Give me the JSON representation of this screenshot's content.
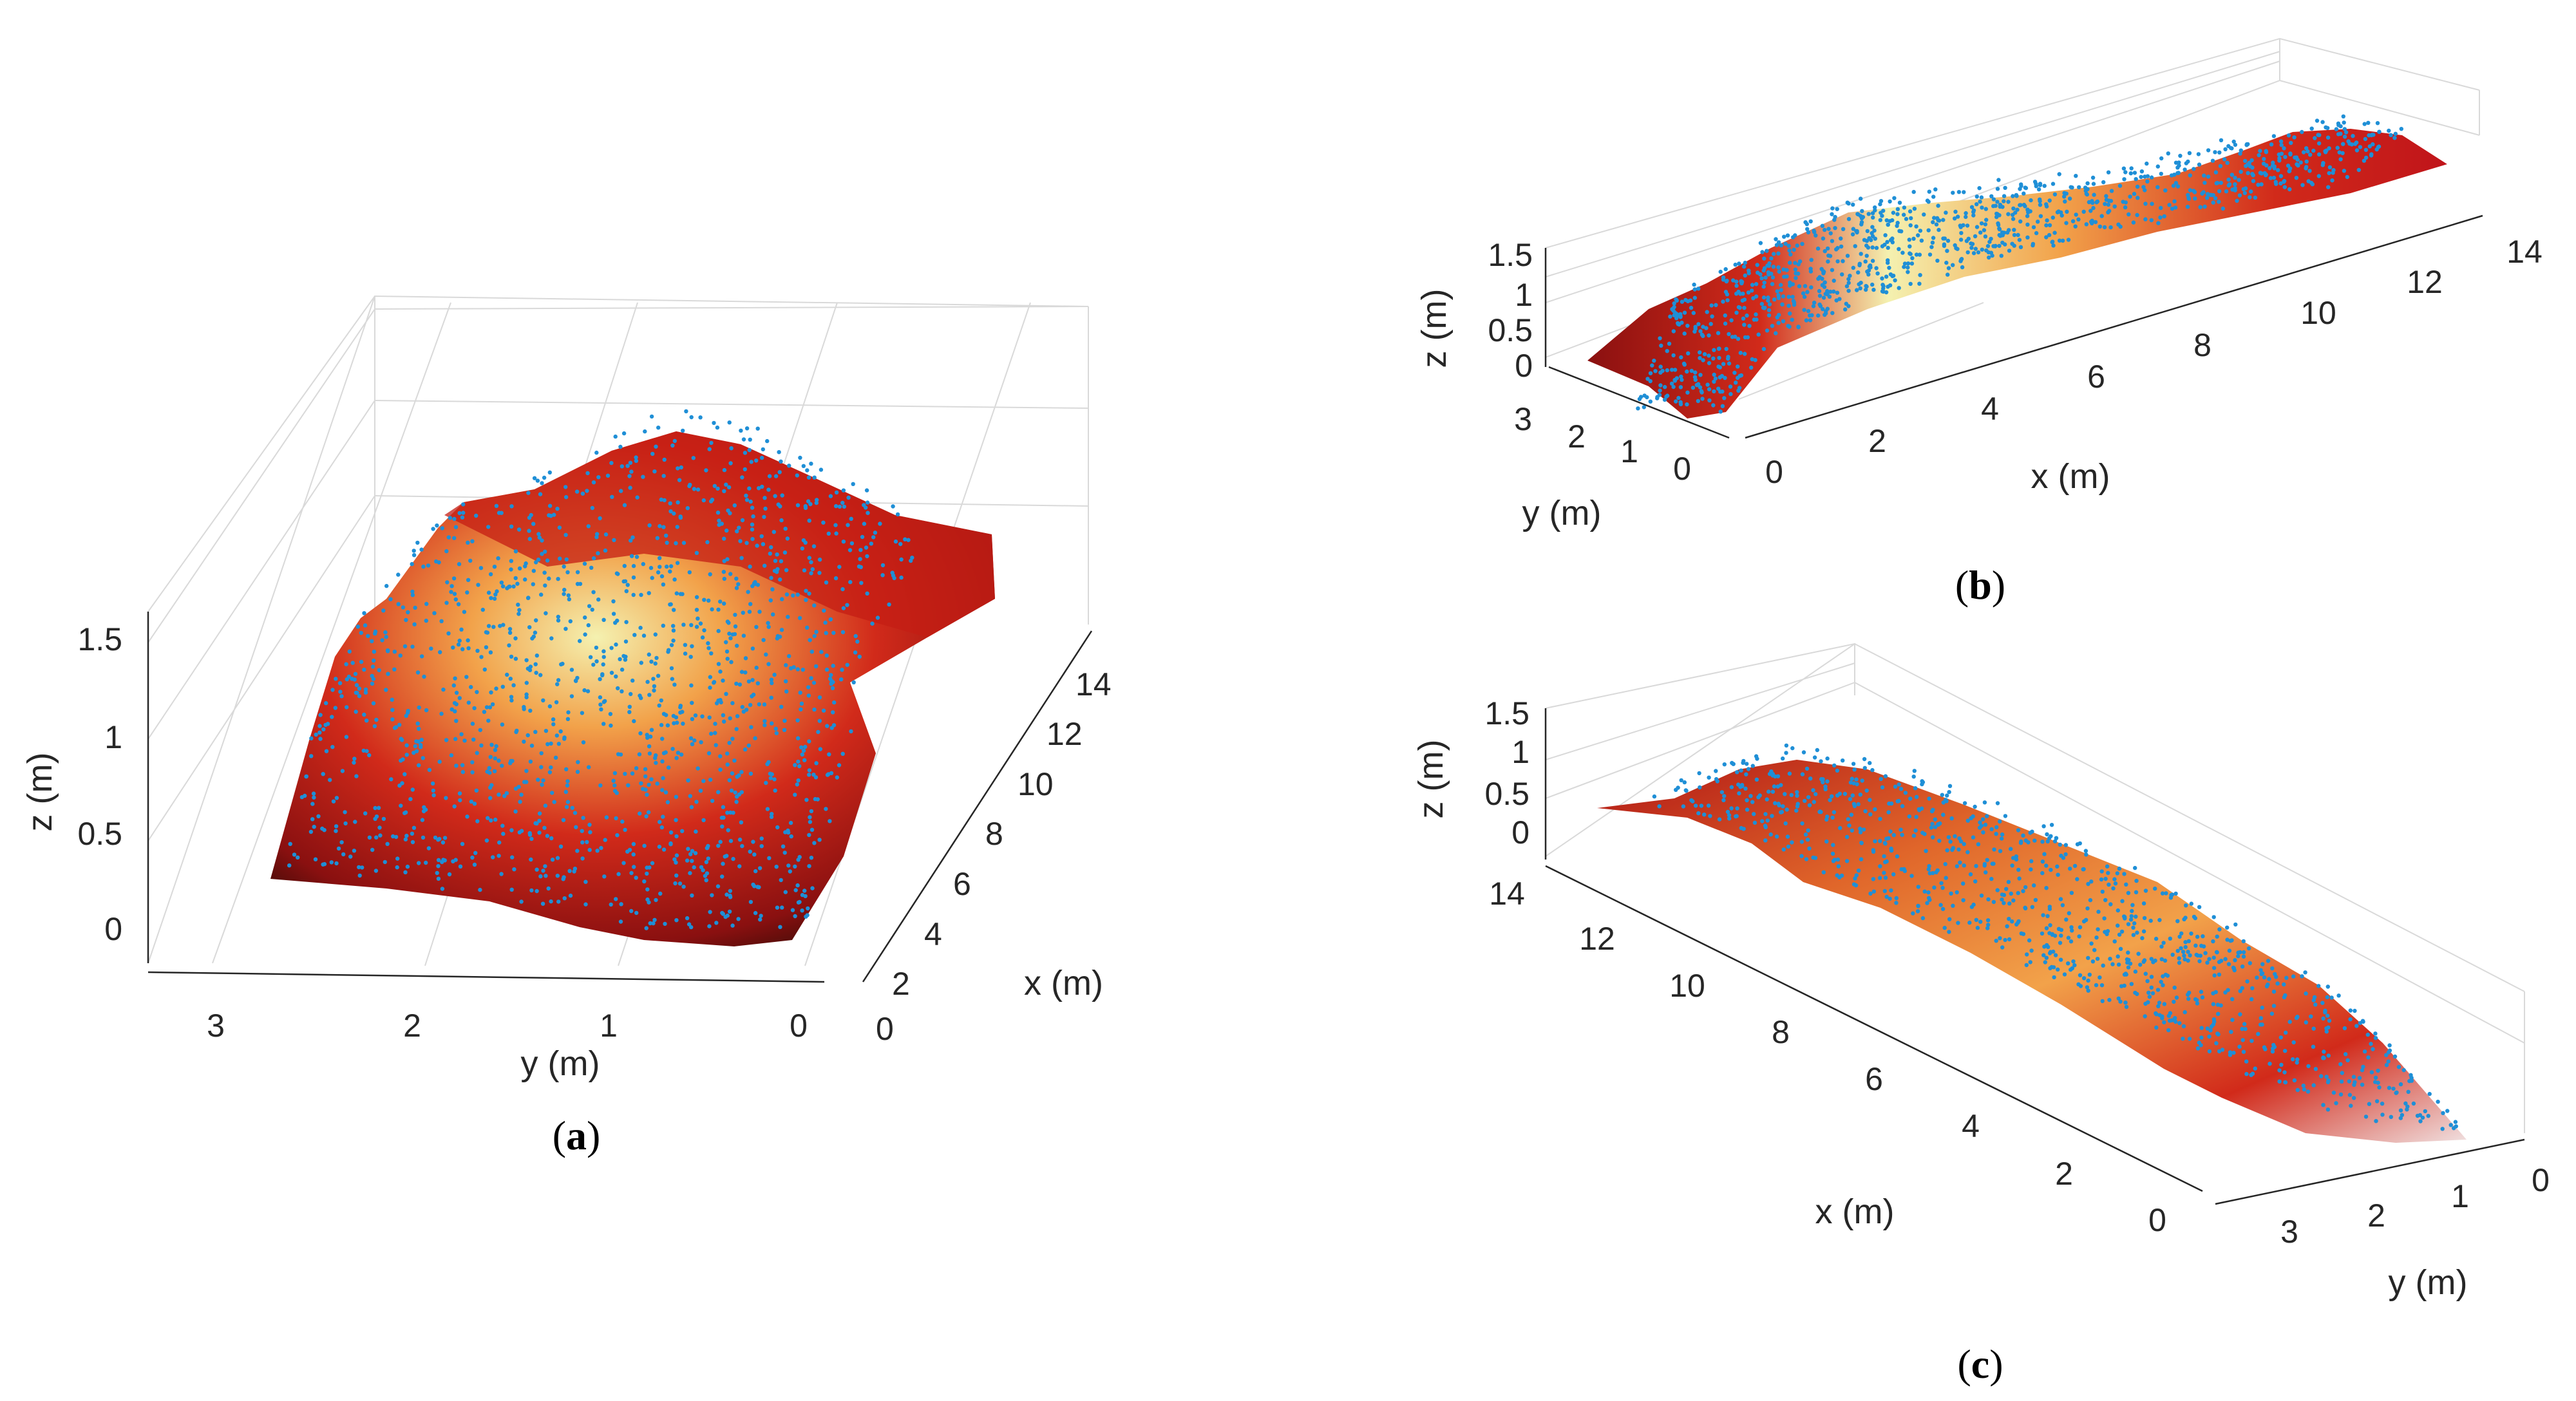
{
  "colors": {
    "points": "#1f8fd6",
    "surface_low": "#8a1010",
    "surface_mid": "#d12a1a",
    "surface_high": "#f2a24a",
    "surface_peak": "#f4f1b0",
    "surface_shadow": "#2a0a05",
    "grid": "#d9d9d9",
    "axis": "#262626"
  },
  "chart_data": [
    {
      "panel": "a",
      "caption_open": "(",
      "caption_letter": "a",
      "caption_close": ")",
      "type": "scatter",
      "description_kind": "3D surface with point cloud",
      "xlabel": "x (m)",
      "ylabel": "y (m)",
      "zlabel": "z (m)",
      "x_ticks": [
        "0",
        "2",
        "4",
        "6",
        "8",
        "10",
        "12",
        "14"
      ],
      "y_ticks": [
        "3",
        "2",
        "1",
        "0"
      ],
      "z_ticks": [
        "0",
        "0.5",
        "1",
        "1.5"
      ],
      "xlim": [
        0,
        14
      ],
      "ylim": [
        0,
        3.4
      ],
      "zlim": [
        0,
        1.7
      ]
    },
    {
      "panel": "b",
      "caption_open": "(",
      "caption_letter": "b",
      "caption_close": ")",
      "type": "scatter",
      "description_kind": "3D surface with point cloud",
      "xlabel": "x (m)",
      "ylabel": "y (m)",
      "zlabel": "z (m)",
      "x_ticks": [
        "0",
        "2",
        "4",
        "6",
        "8",
        "10",
        "12",
        "14"
      ],
      "y_ticks": [
        "3",
        "2",
        "1",
        "0"
      ],
      "z_ticks": [
        "0",
        "0.5",
        "1",
        "1.5"
      ],
      "xlim": [
        0,
        14
      ],
      "ylim": [
        0,
        3.4
      ],
      "zlim": [
        0,
        1.7
      ]
    },
    {
      "panel": "c",
      "caption_open": "(",
      "caption_letter": "c",
      "caption_close": ")",
      "type": "scatter",
      "description_kind": "3D surface with point cloud",
      "xlabel": "x (m)",
      "ylabel": "y (m)",
      "zlabel": "z (m)",
      "x_ticks": [
        "14",
        "12",
        "10",
        "8",
        "6",
        "4",
        "2",
        "0"
      ],
      "y_ticks": [
        "3",
        "2",
        "1",
        "0"
      ],
      "z_ticks": [
        "0",
        "0.5",
        "1",
        "1.5"
      ],
      "xlim": [
        0,
        14
      ],
      "ylim": [
        0,
        3.4
      ],
      "zlim": [
        0,
        1.7
      ]
    }
  ]
}
